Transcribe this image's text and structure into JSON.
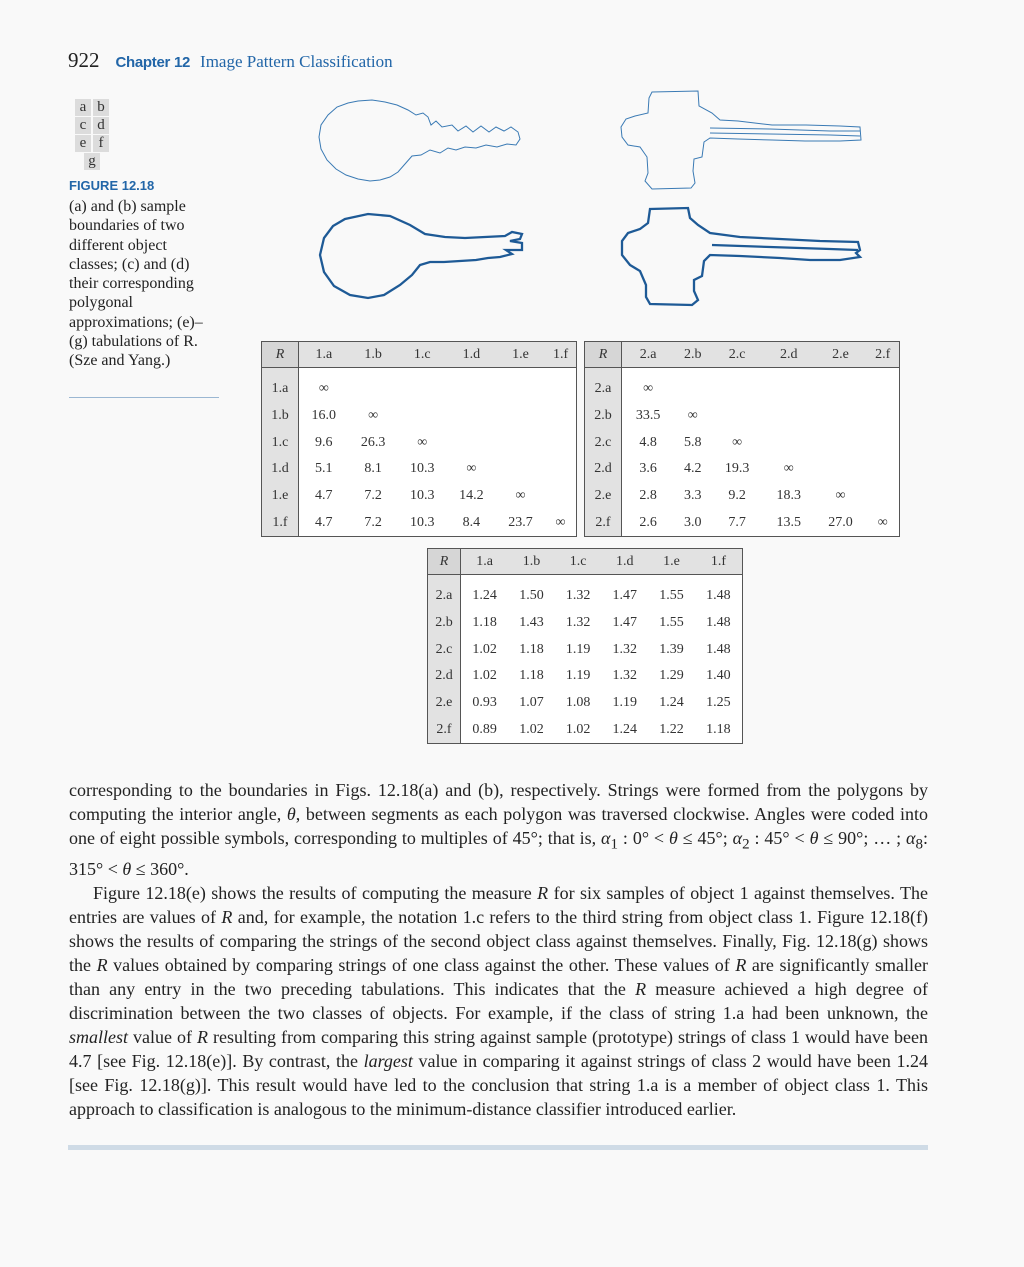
{
  "header": {
    "page_number": "922",
    "chapter_label": "Chapter 12",
    "chapter_title": "Image Pattern Classification"
  },
  "panel_grid": [
    [
      "a",
      "b"
    ],
    [
      "c",
      "d"
    ],
    [
      "e",
      "f"
    ],
    [
      "g"
    ]
  ],
  "figure": {
    "label": "FIGURE 12.18",
    "caption": "(a) and (b) sample boundaries of two different object classes; (c) and (d) their corresponding polygonal approximations; (e)–(g) tabulations of R.",
    "credit": "(Sze and Yang.)",
    "line_color": "#2f6ea6"
  },
  "table_e": {
    "corner": "R",
    "cols": [
      "1.a",
      "1.b",
      "1.c",
      "1.d",
      "1.e",
      "1.f"
    ],
    "rows": [
      {
        "label": "1.a",
        "cells": [
          "∞",
          "",
          "",
          "",
          "",
          ""
        ]
      },
      {
        "label": "1.b",
        "cells": [
          "16.0",
          "∞",
          "",
          "",
          "",
          ""
        ]
      },
      {
        "label": "1.c",
        "cells": [
          "9.6",
          "26.3",
          "∞",
          "",
          "",
          ""
        ]
      },
      {
        "label": "1.d",
        "cells": [
          "5.1",
          "8.1",
          "10.3",
          "∞",
          "",
          ""
        ]
      },
      {
        "label": "1.e",
        "cells": [
          "4.7",
          "7.2",
          "10.3",
          "14.2",
          "∞",
          ""
        ]
      },
      {
        "label": "1.f",
        "cells": [
          "4.7",
          "7.2",
          "10.3",
          "8.4",
          "23.7",
          "∞"
        ]
      }
    ]
  },
  "table_f": {
    "corner": "R",
    "cols": [
      "2.a",
      "2.b",
      "2.c",
      "2.d",
      "2.e",
      "2.f"
    ],
    "rows": [
      {
        "label": "2.a",
        "cells": [
          "∞",
          "",
          "",
          "",
          "",
          ""
        ]
      },
      {
        "label": "2.b",
        "cells": [
          "33.5",
          "∞",
          "",
          "",
          "",
          ""
        ]
      },
      {
        "label": "2.c",
        "cells": [
          "4.8",
          "5.8",
          "∞",
          "",
          "",
          ""
        ]
      },
      {
        "label": "2.d",
        "cells": [
          "3.6",
          "4.2",
          "19.3",
          "∞",
          "",
          ""
        ]
      },
      {
        "label": "2.e",
        "cells": [
          "2.8",
          "3.3",
          "9.2",
          "18.3",
          "∞",
          ""
        ]
      },
      {
        "label": "2.f",
        "cells": [
          "2.6",
          "3.0",
          "7.7",
          "13.5",
          "27.0",
          "∞"
        ]
      }
    ]
  },
  "table_g": {
    "corner": "R",
    "cols": [
      "1.a",
      "1.b",
      "1.c",
      "1.d",
      "1.e",
      "1.f"
    ],
    "rows": [
      {
        "label": "2.a",
        "cells": [
          "1.24",
          "1.50",
          "1.32",
          "1.47",
          "1.55",
          "1.48"
        ]
      },
      {
        "label": "2.b",
        "cells": [
          "1.18",
          "1.43",
          "1.32",
          "1.47",
          "1.55",
          "1.48"
        ]
      },
      {
        "label": "2.c",
        "cells": [
          "1.02",
          "1.18",
          "1.19",
          "1.32",
          "1.39",
          "1.48"
        ]
      },
      {
        "label": "2.d",
        "cells": [
          "1.02",
          "1.18",
          "1.19",
          "1.32",
          "1.29",
          "1.40"
        ]
      },
      {
        "label": "2.e",
        "cells": [
          "0.93",
          "1.07",
          "1.08",
          "1.19",
          "1.24",
          "1.25"
        ]
      },
      {
        "label": "2.f",
        "cells": [
          "0.89",
          "1.02",
          "1.02",
          "1.24",
          "1.22",
          "1.18"
        ]
      }
    ]
  },
  "body": {
    "p1a": "corresponding to the boundaries in Figs. 12.18(a) and (b), respectively. Strings were formed from the polygons by computing the interior angle, ",
    "p1_theta": "θ",
    "p1b": ", between segments as each polygon was traversed clockwise. Angles were coded into one of eight possible symbols, corresponding to multiples of 45°; that is, ",
    "p1_alpha1": "α",
    "p1_sub1": "1",
    "p1c": " : 0° < ",
    "p1_theta2": "θ",
    "p1d": " ≤ 45°; ",
    "p1_alpha2": "α",
    "p1_sub2": "2",
    "p1e": " : 45° < ",
    "p1_theta3": "θ",
    "p1f": " ≤ 90°; … ; ",
    "p1_alpha8": "α",
    "p1_sub8": "8",
    "p1g": ": 315° < ",
    "p1_theta4": "θ",
    "p1h": " ≤ 360°.",
    "p2a": "Figure 12.18(e) shows the results of computing the measure ",
    "p2_R1": "R",
    "p2b": " for six samples of object 1 against themselves. The entries are values of ",
    "p2_R2": "R",
    "p2c": " and, for example, the notation 1.c refers to the third string from object class 1. Figure 12.18(f) shows the results of comparing the strings of the second object class against themselves. Finally, Fig. 12.18(g) shows the ",
    "p2_R3": "R",
    "p2d": " values obtained by comparing strings of one class against the other. These values of ",
    "p2_R4": "R",
    "p2e": " are significantly smaller than any entry in the two preceding tabulations. This indicates that the ",
    "p2_R5": "R",
    "p2f": " measure achieved a high degree of discrimination between the two classes of objects. For example, if the class of string 1.a had been unknown, the ",
    "p2_smallest": "smallest",
    "p2g": " value of ",
    "p2_R6": "R",
    "p2h": " resulting from comparing this string against sample (prototype) strings of class 1 would have been 4.7 [see Fig. 12.18(e)]. By contrast, the ",
    "p2_largest": "largest",
    "p2i": " value in comparing it against strings of class 2 would have been 1.24 [see Fig. 12.18(g)]. This result would have led to the conclusion that string 1.a is a member of object class 1. This approach to classification is analogous to the minimum-distance classifier introduced earlier."
  }
}
